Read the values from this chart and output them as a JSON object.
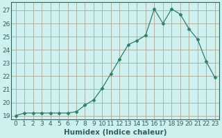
{
  "x": [
    0,
    1,
    2,
    3,
    4,
    5,
    6,
    7,
    8,
    9,
    10,
    11,
    12,
    13,
    14,
    15,
    16,
    17,
    18,
    19,
    20,
    21,
    22,
    23
  ],
  "y": [
    19.0,
    19.2,
    19.2,
    19.2,
    19.2,
    19.2,
    19.2,
    19.3,
    19.8,
    20.2,
    21.1,
    22.2,
    23.3,
    24.4,
    24.7,
    25.1,
    27.1,
    26.0,
    27.1,
    26.7,
    25.6,
    24.8,
    23.1,
    21.9
  ],
  "line_color": "#2e7d6e",
  "marker": "D",
  "marker_size": 2.5,
  "bg_color": "#cef0ee",
  "grid_color": "#a8a898",
  "xlabel": "Humidex (Indice chaleur)",
  "ylabel": "",
  "xlim": [
    -0.5,
    23.5
  ],
  "ylim": [
    18.7,
    27.6
  ],
  "yticks": [
    19,
    20,
    21,
    22,
    23,
    24,
    25,
    26,
    27
  ],
  "xticks": [
    0,
    1,
    2,
    3,
    4,
    5,
    6,
    7,
    8,
    9,
    10,
    11,
    12,
    13,
    14,
    15,
    16,
    17,
    18,
    19,
    20,
    21,
    22,
    23
  ],
  "tick_color": "#2e6060",
  "axis_color": "#2e6060",
  "label_fontsize": 7.5,
  "tick_fontsize": 6.5
}
